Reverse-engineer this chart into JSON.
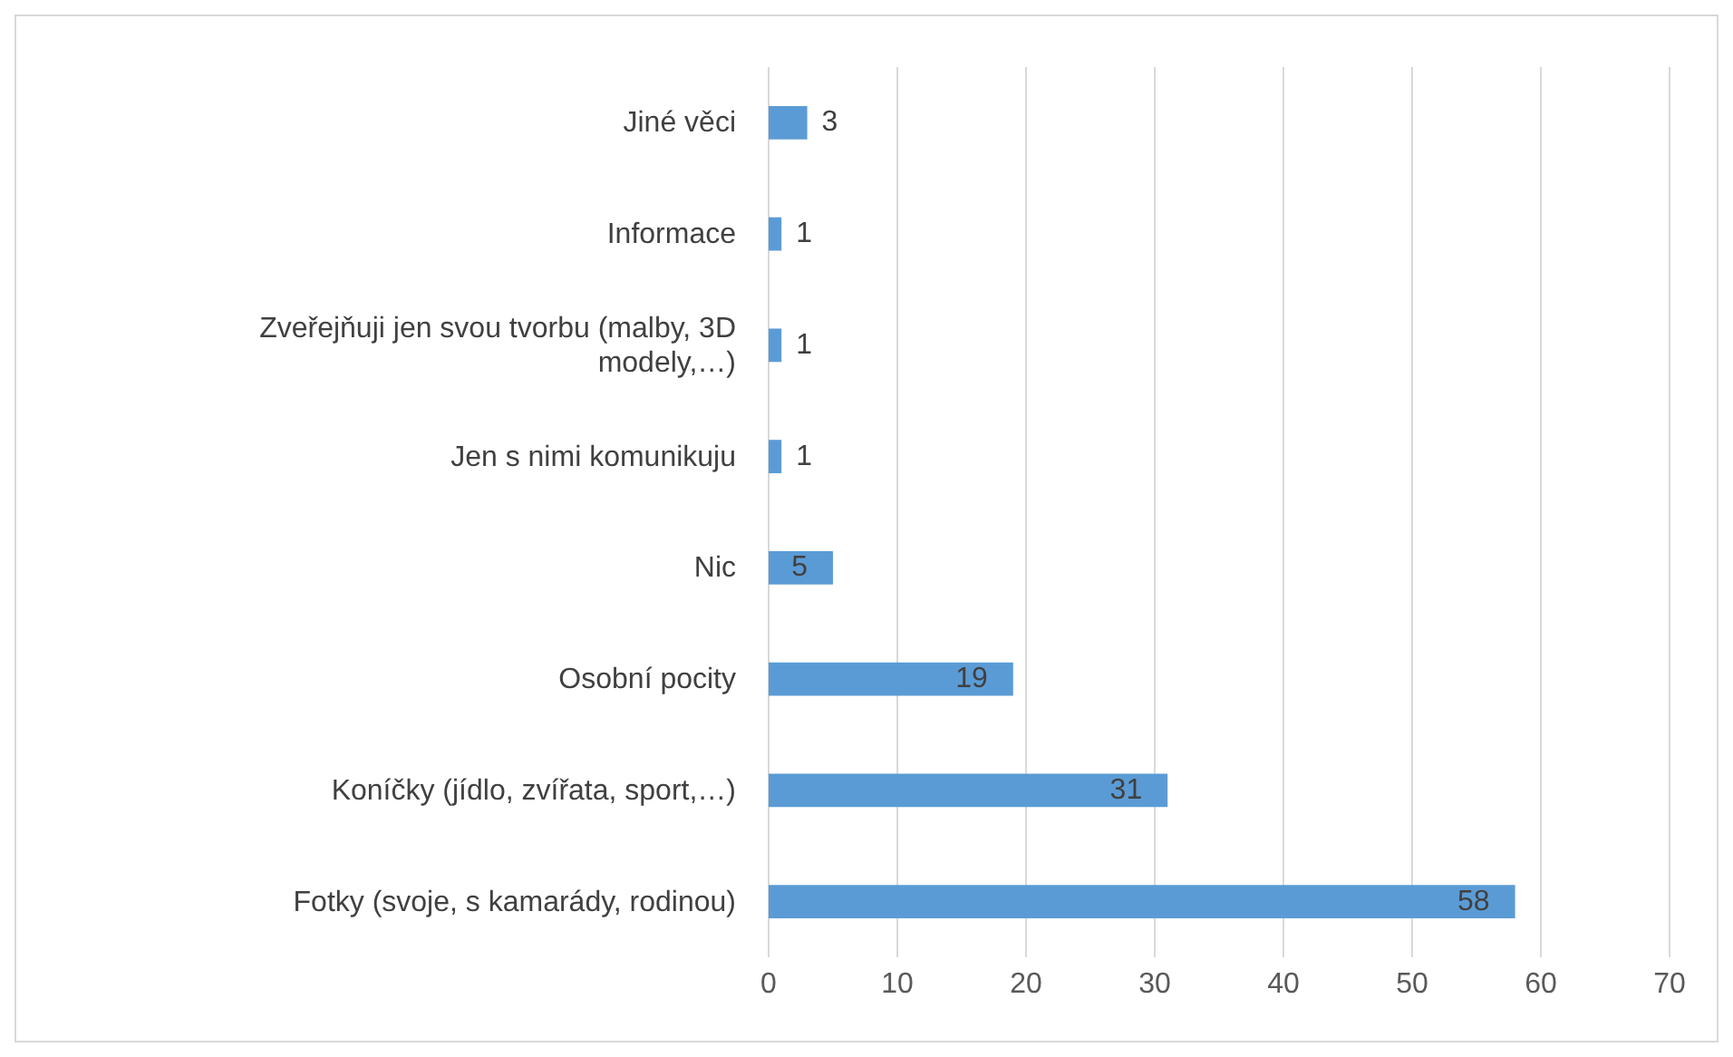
{
  "chart_data": {
    "type": "bar",
    "orientation": "horizontal",
    "categories": [
      "Jiné věci",
      "Informace",
      "Zveřejňuji jen svou tvorbu (malby, 3D modely,…)",
      "Jen s nimi komunikuju",
      "Nic",
      "Osobní pocity",
      "Koníčky (jídlo, zvířata, sport,…)",
      "Fotky (svoje, s kamarády, rodinou)"
    ],
    "values": [
      3,
      1,
      1,
      1,
      5,
      19,
      31,
      58
    ],
    "color": "#5b9bd5",
    "xlim": [
      0,
      70
    ],
    "xticks": [
      0,
      10,
      20,
      30,
      40,
      50,
      60,
      70
    ],
    "grid": "x",
    "data_labels": true
  }
}
